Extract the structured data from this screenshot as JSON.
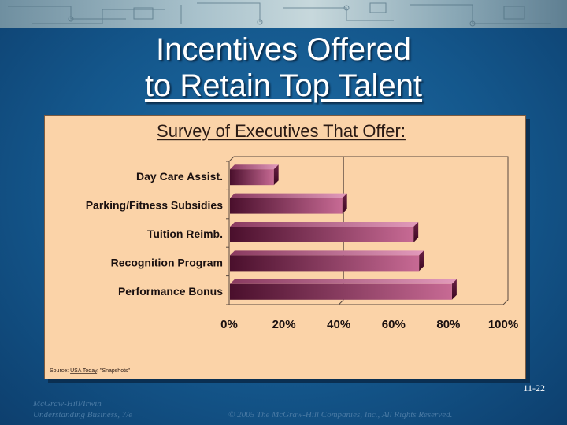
{
  "slide": {
    "title_line1": "Incentives Offered",
    "title_line2": "to Retain Top Talent",
    "slide_number": "11-22",
    "footer_publisher": "McGraw-Hill/Irwin",
    "footer_book": "Understanding Business, 7/e",
    "footer_copyright": "© 2005 The McGraw-Hill Companies, Inc., All Rights Reserved."
  },
  "colors": {
    "panel_bg": "#fbd3a8",
    "bar_dark": "#4a0f2c",
    "bar_light": "#c76a94",
    "slide_bg": "#14578c"
  },
  "chart_data": {
    "type": "bar",
    "orientation": "horizontal",
    "title": "Survey of Executives That Offer:",
    "categories": [
      "Day Care Assist.",
      "Parking/Fitness Subsidies",
      "Tuition Reimb.",
      "Recognition Program",
      "Performance Bonus"
    ],
    "values": [
      16,
      41,
      67,
      69,
      81
    ],
    "xlim": [
      0,
      100
    ],
    "xticks": [
      "0%",
      "20%",
      "40%",
      "60%",
      "80%",
      "100%"
    ],
    "xtick_values": [
      0,
      20,
      40,
      60,
      80,
      100
    ],
    "gridlines": [
      40
    ],
    "source_prefix": "Source: ",
    "source_publication": "USA Today",
    "source_suffix": ", \"Snapshots\""
  }
}
